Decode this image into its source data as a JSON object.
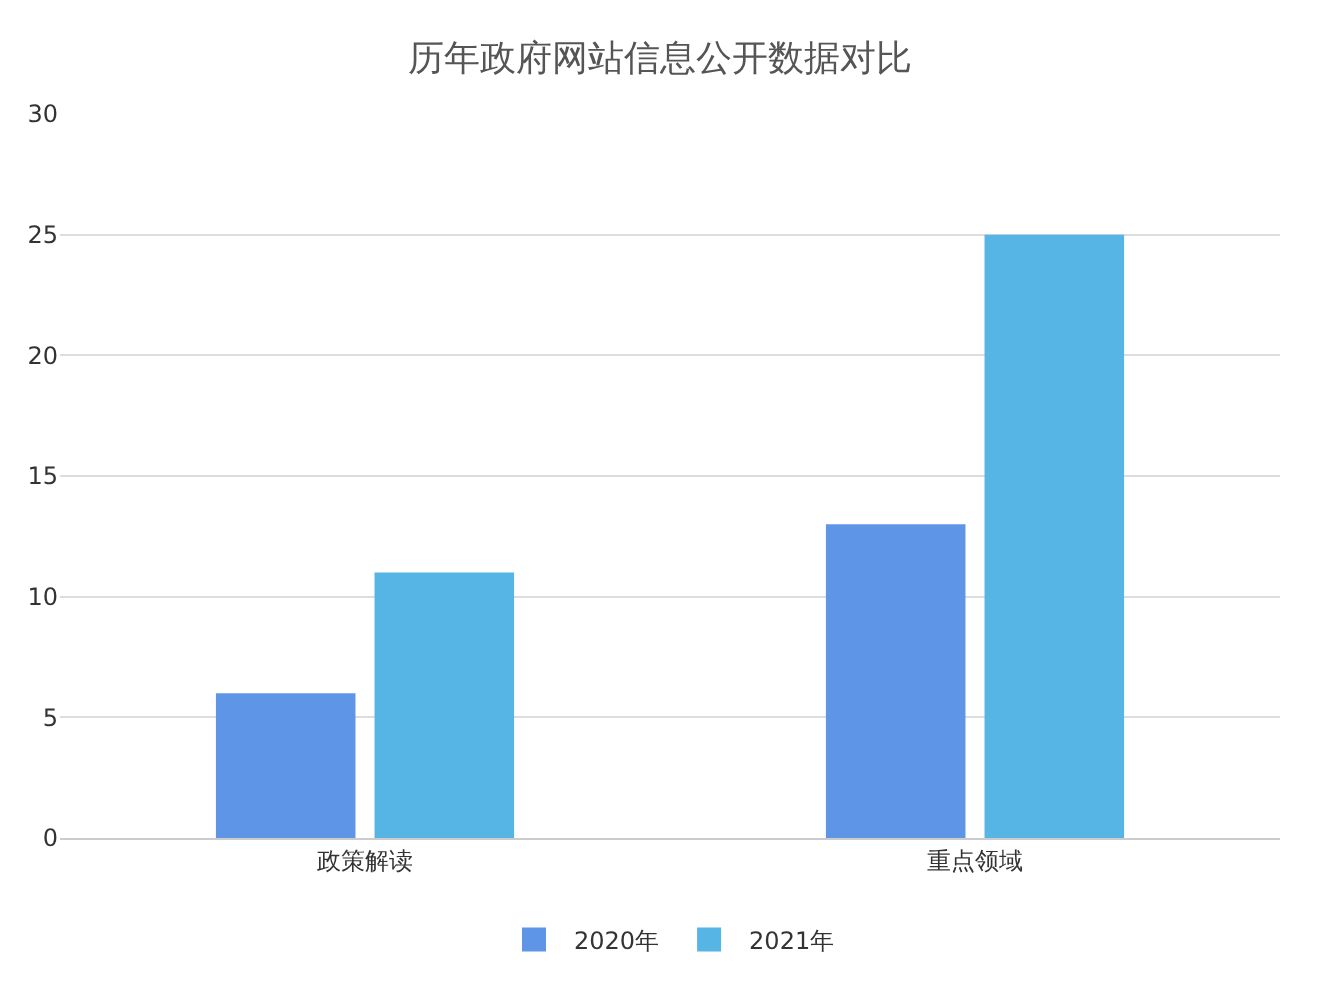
{
  "chart_data": {
    "type": "bar",
    "title": "历年政府网站信息公开数据对比",
    "categories": [
      "政策解读",
      "重点领域"
    ],
    "series": [
      {
        "name": "2020年",
        "color": "#5f95e6",
        "values": [
          6,
          13
        ]
      },
      {
        "name": "2021年",
        "color": "#56b5e5",
        "values": [
          11,
          25
        ]
      }
    ],
    "ylim": [
      0,
      30
    ],
    "yticks": [
      0,
      5,
      10,
      15,
      20,
      25,
      30
    ],
    "grid": "y",
    "legend": "bottom"
  }
}
